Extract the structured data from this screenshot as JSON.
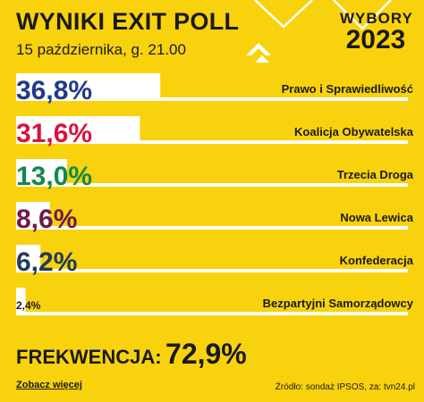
{
  "header": {
    "title": "WYNIKI EXIT POLL",
    "subtitle": "15 października, g. 21.00"
  },
  "logo": {
    "line1": "WYBORY",
    "line2": "2023"
  },
  "chart_data": {
    "type": "bar",
    "orientation": "horizontal",
    "title": "WYNIKI EXIT POLL",
    "subtitle": "15 października, g. 21.00",
    "unit": "%",
    "xlim": [
      0,
      100
    ],
    "grid": false,
    "legend": "none",
    "categories": [
      "Prawo i Sprawiedliwość",
      "Koalicja Obywatelska",
      "Trzecia Droga",
      "Nowa Lewica",
      "Konfederacja",
      "Bezpartyjni Samorządowcy"
    ],
    "values": [
      36.8,
      31.6,
      13.0,
      8.6,
      6.2,
      2.4
    ],
    "labels": [
      "36,8%",
      "31,6%",
      "13,0%",
      "8,6%",
      "6,2%",
      "2,4%"
    ],
    "label_colors": [
      "#1f3a8a",
      "#d7143c",
      "#0f8a4a",
      "#6e1a4a",
      "#1f3b5c",
      "#1a1a1a"
    ],
    "bar_color": "#ffffff"
  },
  "turnout": {
    "label": "FREKWENCJA:",
    "value": "72,9%"
  },
  "footer": {
    "more_link": "Zobacz więcej",
    "source": "Źródło: sondaż IPSOS, za: tvn24.pl"
  }
}
